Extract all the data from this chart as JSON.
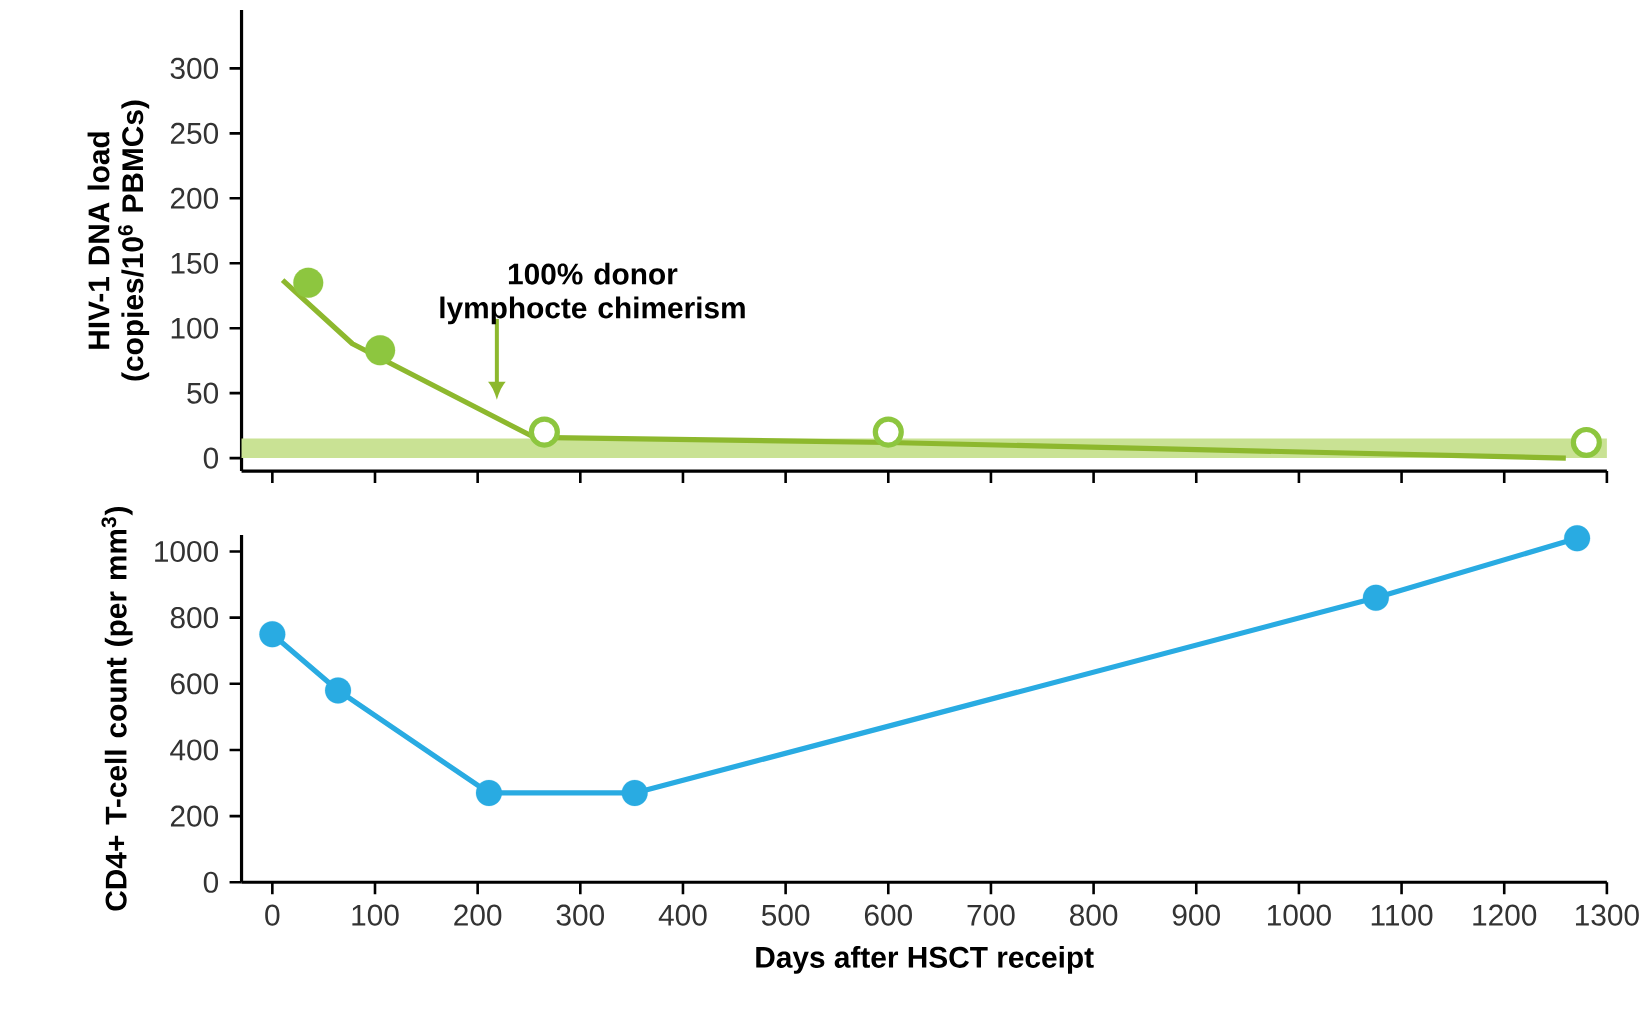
{
  "chart_data": [
    {
      "type": "line",
      "ylabel": "HIV-1 DNA load (copies/10$^{6}$ PBMCs)",
      "xlim": [
        -30,
        1300
      ],
      "ylim": [
        -10,
        345
      ],
      "xticks": [
        0,
        100,
        200,
        300,
        400,
        500,
        600,
        700,
        800,
        900,
        1000,
        1100,
        1200,
        1300
      ],
      "yticks": [
        0,
        50,
        100,
        150,
        200,
        250,
        300
      ],
      "tick_labels": "y",
      "series": [
        {
          "type": "line",
          "color": "#8db82e",
          "marker": "none",
          "x": [
            10,
            78,
            255,
            600,
            1260
          ],
          "values": [
            137,
            88,
            16,
            12,
            0
          ]
        },
        {
          "type": "scatter",
          "color": "#8dc63f",
          "marker": "circle",
          "x": [
            35,
            105
          ],
          "values": [
            135,
            83
          ]
        },
        {
          "type": "scatter",
          "color": "#8dc63f",
          "marker": "circle",
          "x": [
            265,
            600,
            1280
          ],
          "values": [
            20,
            20,
            12
          ]
        }
      ],
      "bands": [
        {
          "axis": "y",
          "from": 0,
          "to": 15,
          "color": "#c9e294"
        }
      ],
      "annotations": [
        "100% donor lymphocte chimerism"
      ]
    },
    {
      "type": "line",
      "xlabel": "Days after HSCT receipt",
      "ylabel": "CD4+ T-cell count (per mm$^{3}$)",
      "xlim": [
        -30,
        1300
      ],
      "ylim": [
        0,
        1050
      ],
      "xticks": [
        0,
        100,
        200,
        300,
        400,
        500,
        600,
        700,
        800,
        900,
        1000,
        1100,
        1200,
        1300
      ],
      "yticks": [
        0,
        200,
        400,
        600,
        800,
        1000
      ],
      "marker": "circle",
      "series": [
        {
          "color": "#29abe2",
          "x": [
            0,
            64,
            211,
            353,
            1075,
            1271
          ],
          "values": [
            750,
            580,
            270,
            270,
            860,
            1040
          ]
        }
      ]
    }
  ]
}
